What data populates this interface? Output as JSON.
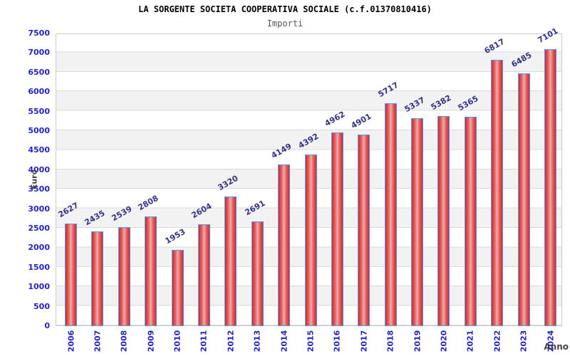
{
  "header": {
    "title": "LA SORGENTE SOCIETA COOPERATIVA SOCIALE (c.f.01370810416)",
    "subtitle": "Importi"
  },
  "axes": {
    "y_title": "Euro",
    "x_title": "Anno"
  },
  "chart_data": {
    "type": "bar",
    "title": "LA SORGENTE SOCIETA COOPERATIVA SOCIALE (c.f.01370810416)",
    "subtitle": "Importi",
    "xlabel": "Anno",
    "ylabel": "Euro",
    "categories": [
      "2006",
      "2007",
      "2008",
      "2009",
      "2010",
      "2011",
      "2012",
      "2013",
      "2014",
      "2015",
      "2016",
      "2017",
      "2018",
      "2019",
      "2020",
      "2021",
      "2022",
      "2023",
      "2024"
    ],
    "values": [
      2627,
      2435,
      2539,
      2808,
      1953,
      2604,
      3320,
      2691,
      4149,
      4392,
      4962,
      4901,
      5717,
      5337,
      5382,
      5365,
      6817,
      6485,
      7101
    ],
    "ylim": [
      0,
      7500
    ],
    "y_tick_step": 500,
    "y_ticks": [
      7500,
      7000,
      6500,
      6000,
      5500,
      5000,
      4500,
      4000,
      3500,
      3000,
      2500,
      2000,
      1500,
      1000,
      500,
      0
    ],
    "grid": true,
    "legend": false,
    "band_fill": "alternating horizontal stripes"
  },
  "colors": {
    "axis_tick_label": "#2222cc",
    "value_label": "#333388",
    "bar_edge": "#d32a2a",
    "bar_mid": "#e46060",
    "bar_center": "#f0abab",
    "bar_border": "#4a9af0",
    "band": "#f2f2f2",
    "grid_line": "#d9d9d9",
    "plot_border": "#cccccc",
    "title": "#000000",
    "subtitle": "#555555",
    "axis_title": "#444444"
  }
}
